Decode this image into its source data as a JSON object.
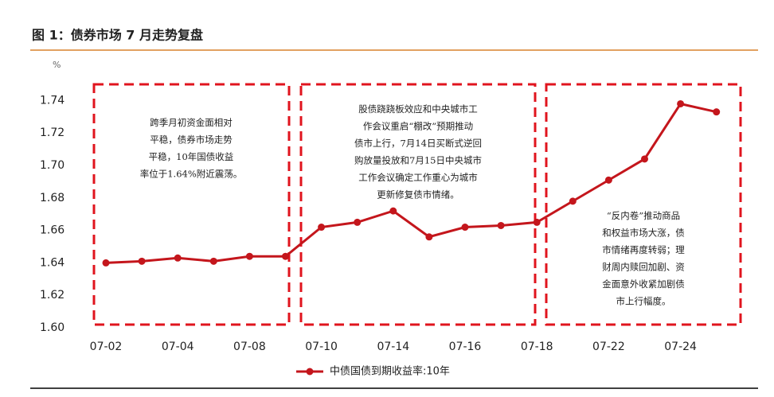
{
  "chart_data": {
    "type": "line",
    "title": "图 1：债券市场 7 月走势复盘",
    "y_unit": "%",
    "categories": [
      "07-02",
      null,
      "07-04",
      null,
      "07-08",
      null,
      "07-10",
      null,
      "07-14",
      null,
      "07-16",
      null,
      "07-18",
      null,
      "07-22",
      null,
      "07-24",
      null
    ],
    "series": [
      {
        "name": "中债国债到期收益率:10年",
        "color": "#c4161c",
        "values": [
          1.64,
          1.641,
          1.643,
          1.641,
          1.644,
          1.644,
          1.662,
          1.665,
          1.672,
          1.656,
          1.662,
          1.663,
          1.665,
          1.678,
          1.691,
          1.704,
          1.738,
          1.733
        ]
      }
    ],
    "ylim": [
      1.6,
      1.75
    ],
    "yticks": [
      {
        "value": 1.6,
        "label": "1.60"
      },
      {
        "value": 1.62,
        "label": "1.62"
      },
      {
        "value": 1.64,
        "label": "1.64"
      },
      {
        "value": 1.66,
        "label": "1.66"
      },
      {
        "value": 1.68,
        "label": "1.68"
      },
      {
        "value": 1.7,
        "label": "1.70"
      },
      {
        "value": 1.72,
        "label": "1.72"
      },
      {
        "value": 1.74,
        "label": "1.74"
      }
    ],
    "annotations": [
      {
        "lines": [
          "跨季月初资金面相对",
          "平稳，债券市场走势",
          "平稳，10年国债收益",
          "率位于1.64%附近震荡。"
        ]
      },
      {
        "lines": [
          "股债跷跷板效应和中央城市工",
          "作会议重启“棚改”预期推动",
          "债市上行，7月14日买断式逆回",
          "购放量投放和7月15日中央城市",
          "工作会议确定工作重心为城市",
          "更新修复债市情绪。"
        ]
      },
      {
        "lines": [
          "“反内卷”推动商品",
          "和权益市场大涨，债",
          "市情绪再度转弱；理",
          "财周内赎回加剧、资",
          "金面意外收紧加剧债",
          "市上行幅度。"
        ]
      }
    ]
  }
}
